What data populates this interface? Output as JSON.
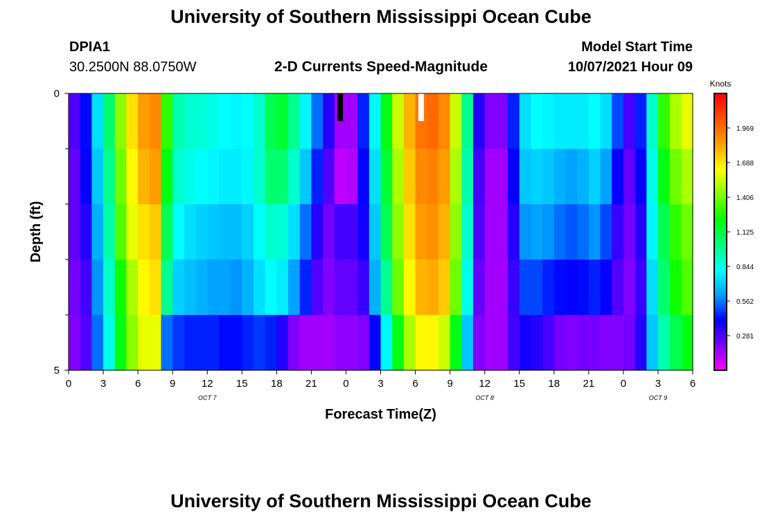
{
  "page": {
    "title_top": "University of Southern Mississippi Ocean Cube",
    "title_bottom": "University of Southern Mississippi Ocean Cube",
    "station_id": "DPIA1",
    "station_coords": "30.2500N  88.0750W",
    "model_start_label": "Model Start Time",
    "model_start_value": "10/07/2021 Hour 09"
  },
  "chart_data": {
    "type": "heatmap",
    "title": "2-D Currents Speed-Magnitude",
    "xlabel": "Forecast Time(Z)",
    "ylabel": "Depth (ft)",
    "colorbar_label": "Knots",
    "colorbar_ticks": [
      "0.281",
      "0.562",
      "0.844",
      "1.125",
      "1.406",
      "1.688",
      "1.969"
    ],
    "colorbar_range": [
      0,
      2.25
    ],
    "x_ticks": [
      "0",
      "3",
      "6",
      "9",
      "12",
      "15",
      "18",
      "21",
      "0",
      "3",
      "6",
      "9",
      "12",
      "15",
      "18",
      "21",
      "0",
      "3",
      "6"
    ],
    "day_labels": [
      {
        "text": "OCT 7",
        "hour": 12
      },
      {
        "text": "OCT 8",
        "hour": 36
      },
      {
        "text": "OCT 9",
        "hour": 51
      }
    ],
    "x_range_hours": [
      0,
      54
    ],
    "y_range_ft": [
      0,
      5
    ],
    "y_tick_labels": [
      "0",
      "5"
    ],
    "y_minor_ticks_ft": [
      1,
      2,
      3,
      4
    ],
    "markers": [
      {
        "hour": 23.5,
        "color": "#000000"
      },
      {
        "hour": 30.5,
        "color": "#ffffff"
      }
    ],
    "depths_ft": [
      0,
      0.5,
      1.5,
      2.5,
      3.5,
      4.5
    ],
    "x_hours": [
      0,
      1,
      2,
      3,
      4,
      5,
      6,
      7,
      8,
      9,
      10,
      11,
      12,
      13,
      14,
      15,
      16,
      17,
      18,
      19,
      20,
      21,
      22,
      23,
      24,
      25,
      26,
      27,
      28,
      29,
      30,
      31,
      32,
      33,
      34,
      35,
      36,
      37,
      38,
      39,
      40,
      41,
      42,
      43,
      44,
      45,
      46,
      47,
      48,
      49,
      50,
      51,
      52,
      53
    ],
    "speeds_knots": [
      [
        0.28,
        0.42,
        0.75,
        1.05,
        1.45,
        1.7,
        1.85,
        1.9,
        1.3,
        0.95,
        0.9,
        0.88,
        0.85,
        0.82,
        0.8,
        0.82,
        0.9,
        1.1,
        1.15,
        1.0,
        0.8,
        0.55,
        0.35,
        0.15,
        0.15,
        0.45,
        0.8,
        1.2,
        1.55,
        1.8,
        1.95,
        1.98,
        1.9,
        1.55,
        1.0,
        0.35,
        0.2,
        0.2,
        0.45,
        0.75,
        0.82,
        0.8,
        0.78,
        0.78,
        0.78,
        0.82,
        0.75,
        0.5,
        0.3,
        0.45,
        0.9,
        1.3,
        1.5,
        1.6
      ],
      [
        0.28,
        0.42,
        0.75,
        1.05,
        1.45,
        1.7,
        1.85,
        1.9,
        1.3,
        0.95,
        0.9,
        0.88,
        0.85,
        0.82,
        0.8,
        0.82,
        0.9,
        1.1,
        1.15,
        1.0,
        0.8,
        0.55,
        0.35,
        0.15,
        0.15,
        0.45,
        0.8,
        1.2,
        1.55,
        1.8,
        1.95,
        1.98,
        1.9,
        1.55,
        1.0,
        0.35,
        0.2,
        0.2,
        0.45,
        0.75,
        0.82,
        0.8,
        0.78,
        0.78,
        0.78,
        0.82,
        0.75,
        0.5,
        0.3,
        0.45,
        0.9,
        1.3,
        1.5,
        1.6
      ],
      [
        0.25,
        0.4,
        0.7,
        1.0,
        1.4,
        1.65,
        1.8,
        1.85,
        1.2,
        0.9,
        0.85,
        0.82,
        0.8,
        0.78,
        0.78,
        0.8,
        0.9,
        1.05,
        1.05,
        0.9,
        0.7,
        0.45,
        0.28,
        0.1,
        0.12,
        0.4,
        0.75,
        1.15,
        1.5,
        1.75,
        1.9,
        1.92,
        1.85,
        1.5,
        0.95,
        0.3,
        0.15,
        0.15,
        0.4,
        0.7,
        0.72,
        0.7,
        0.65,
        0.62,
        0.65,
        0.72,
        0.62,
        0.4,
        0.25,
        0.4,
        0.85,
        1.2,
        1.4,
        1.5
      ],
      [
        0.25,
        0.35,
        0.65,
        0.95,
        1.35,
        1.6,
        1.7,
        1.75,
        1.1,
        0.82,
        0.75,
        0.72,
        0.7,
        0.68,
        0.68,
        0.72,
        0.82,
        0.9,
        0.88,
        0.75,
        0.55,
        0.35,
        0.22,
        0.3,
        0.3,
        0.38,
        0.7,
        1.1,
        1.45,
        1.7,
        1.85,
        1.88,
        1.8,
        1.45,
        0.9,
        0.28,
        0.15,
        0.15,
        0.35,
        0.6,
        0.62,
        0.6,
        0.55,
        0.52,
        0.55,
        0.6,
        0.5,
        0.32,
        0.22,
        0.35,
        0.8,
        1.1,
        1.3,
        1.4
      ],
      [
        0.22,
        0.3,
        0.6,
        0.9,
        1.25,
        1.5,
        1.65,
        1.7,
        1.0,
        0.72,
        0.68,
        0.65,
        0.62,
        0.62,
        0.6,
        0.65,
        0.75,
        0.82,
        0.78,
        0.62,
        0.45,
        0.28,
        0.2,
        0.25,
        0.25,
        0.32,
        0.65,
        1.0,
        1.4,
        1.65,
        1.8,
        1.82,
        1.75,
        1.4,
        0.85,
        0.25,
        0.15,
        0.15,
        0.32,
        0.5,
        0.5,
        0.45,
        0.42,
        0.4,
        0.42,
        0.45,
        0.4,
        0.28,
        0.2,
        0.32,
        0.75,
        1.05,
        1.25,
        1.35
      ],
      [
        0.2,
        0.28,
        0.55,
        0.85,
        1.2,
        1.45,
        1.6,
        1.6,
        0.55,
        0.48,
        0.45,
        0.45,
        0.45,
        0.42,
        0.42,
        0.45,
        0.48,
        0.45,
        0.35,
        0.2,
        0.15,
        0.15,
        0.15,
        0.18,
        0.18,
        0.2,
        0.4,
        0.8,
        1.2,
        1.5,
        1.65,
        1.65,
        1.55,
        1.2,
        0.7,
        0.2,
        0.15,
        0.15,
        0.3,
        0.38,
        0.35,
        0.3,
        0.22,
        0.2,
        0.22,
        0.22,
        0.2,
        0.2,
        0.22,
        0.35,
        0.7,
        0.95,
        1.1,
        1.2
      ]
    ]
  }
}
